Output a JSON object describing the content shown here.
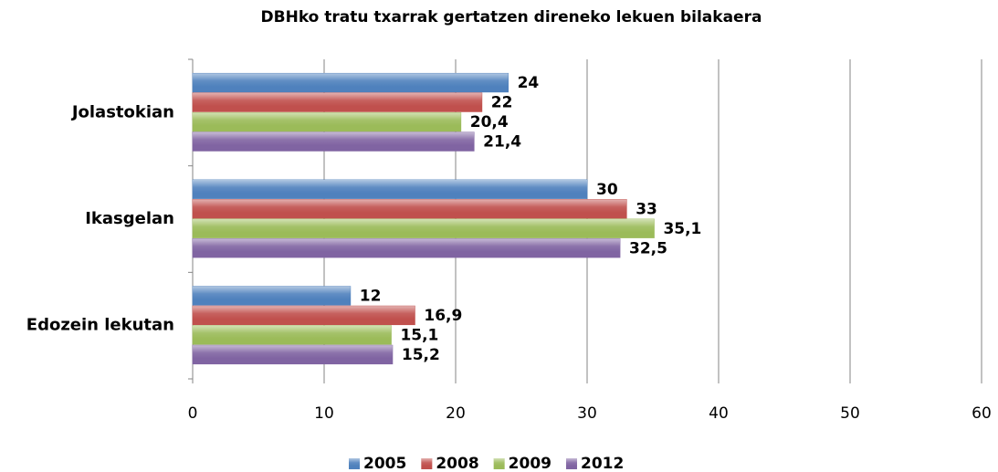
{
  "chart_data": {
    "type": "hbar",
    "title": "DBHko tratu txarrak gertatzen direneko lekuen bilakaera",
    "categories": [
      "Jolastokian",
      "Ikasgelan",
      "Edozein lekutan"
    ],
    "series": [
      {
        "name": "2005",
        "color": "#4f81bd",
        "label_color": "#376092",
        "values": [
          24,
          30,
          12
        ],
        "value_labels": [
          "24",
          "30",
          "12"
        ]
      },
      {
        "name": "2008",
        "color": "#c0504d",
        "label_color": "#c00000",
        "values": [
          22,
          33,
          16.9
        ],
        "value_labels": [
          "22",
          "33",
          "16,9"
        ]
      },
      {
        "name": "2009",
        "color": "#9bbb59",
        "label_color": "#4f6228",
        "values": [
          20.4,
          35.1,
          15.1
        ],
        "value_labels": [
          "20,4",
          "35,1",
          "15,1"
        ]
      },
      {
        "name": "2012",
        "color": "#8064a2",
        "label_color": "#7030a0",
        "values": [
          21.4,
          32.5,
          15.2
        ],
        "value_labels": [
          "21,4",
          "32,5",
          "15,2"
        ]
      }
    ],
    "xlim": [
      0,
      60
    ],
    "xticks": [
      0,
      10,
      20,
      30,
      40,
      50,
      60
    ],
    "grid": true
  }
}
